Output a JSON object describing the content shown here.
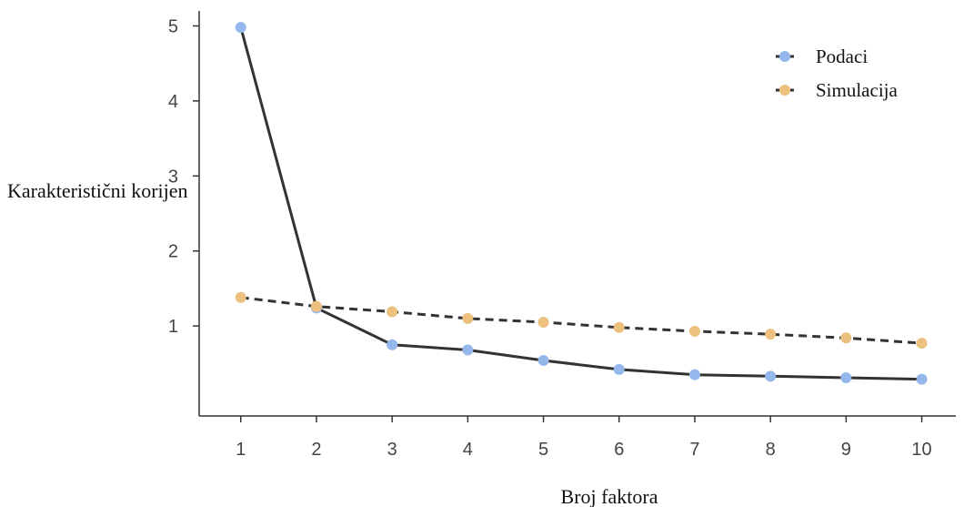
{
  "chart_data": {
    "type": "line",
    "xlabel": "Broj faktora",
    "ylabel": "Karakteristični korijen",
    "x": [
      1,
      2,
      3,
      4,
      5,
      6,
      7,
      8,
      9,
      10
    ],
    "xlim": [
      0.45,
      10.45
    ],
    "ylim": [
      -0.2,
      5.2
    ],
    "yticks": [
      1,
      2,
      3,
      4,
      5
    ],
    "grid": false,
    "legend_position": "top-right",
    "series": [
      {
        "name": "Podaci",
        "values": [
          4.98,
          1.24,
          0.75,
          0.68,
          0.54,
          0.42,
          0.35,
          0.33,
          0.31,
          0.29
        ],
        "line_style": "solid",
        "line_color": "#333333",
        "marker_color": "#94b8eb"
      },
      {
        "name": "Simulacija",
        "values": [
          1.38,
          1.26,
          1.19,
          1.1,
          1.05,
          0.98,
          0.93,
          0.89,
          0.84,
          0.77
        ],
        "line_style": "dashed",
        "line_color": "#333333",
        "marker_color": "#ecc07e"
      }
    ]
  }
}
